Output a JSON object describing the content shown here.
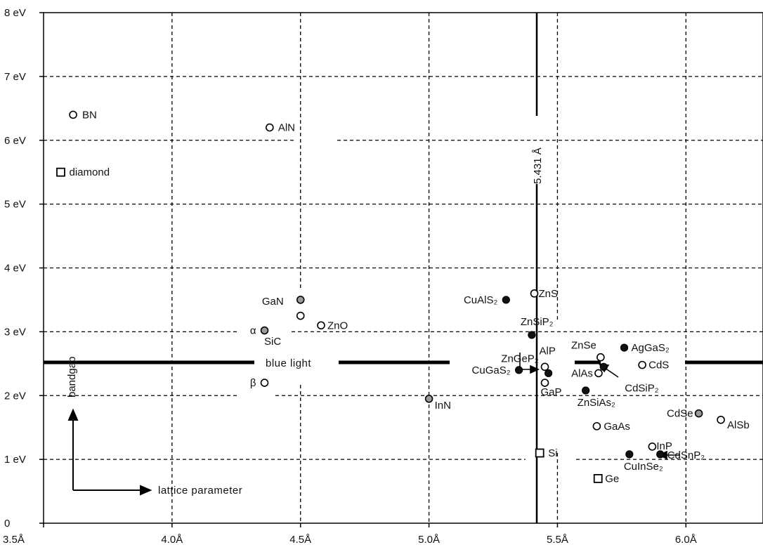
{
  "chart_data": {
    "type": "scatter",
    "xlim": [
      3.5,
      6.3
    ],
    "ylim": [
      0,
      8
    ],
    "grid": true,
    "xticks": [
      {
        "value": 3.5,
        "label": "3.5Å"
      },
      {
        "value": 4.0,
        "label": "4.0Å"
      },
      {
        "value": 4.5,
        "label": "4.5Å"
      },
      {
        "value": 5.0,
        "label": "5.0Å"
      },
      {
        "value": 5.5,
        "label": "5.5Å"
      },
      {
        "value": 6.0,
        "label": "6.0Å"
      }
    ],
    "yticks": [
      {
        "value": 0,
        "label": "0"
      },
      {
        "value": 1,
        "label": "1 eV"
      },
      {
        "value": 2,
        "label": "2 eV"
      },
      {
        "value": 3,
        "label": "3 eV"
      },
      {
        "value": 4,
        "label": "4 eV"
      },
      {
        "value": 5,
        "label": "5 eV"
      },
      {
        "value": 6,
        "label": "6 eV"
      },
      {
        "value": 7,
        "label": "7 eV"
      },
      {
        "value": 8,
        "label": "8 eV"
      }
    ],
    "points": [
      {
        "label": "BN",
        "x": 3.615,
        "y": 6.4,
        "marker": "open"
      },
      {
        "label": "AlN",
        "x": 4.38,
        "y": 6.2,
        "marker": "open"
      },
      {
        "label": "diamond",
        "x": 3.567,
        "y": 5.5,
        "marker": "square"
      },
      {
        "label": "GaN",
        "x": 4.5,
        "y": 3.5,
        "marker": "gray"
      },
      {
        "label": "",
        "x": 4.5,
        "y": 3.25,
        "marker": "open"
      },
      {
        "label": "ZnO",
        "x": 4.58,
        "y": 3.1,
        "marker": "open"
      },
      {
        "label": "α",
        "x": 4.36,
        "y": 3.02,
        "marker": "gray"
      },
      {
        "label": "β",
        "x": 4.36,
        "y": 2.2,
        "marker": "open"
      },
      {
        "label": "InN",
        "x": 5.0,
        "y": 1.95,
        "marker": "gray"
      },
      {
        "label": "CuAlS₂",
        "x": 5.3,
        "y": 3.5,
        "marker": "filled"
      },
      {
        "label": "ZnS",
        "x": 5.41,
        "y": 3.6,
        "marker": "open"
      },
      {
        "label": "ZnSiP₂",
        "x": 5.4,
        "y": 2.95,
        "marker": "filled"
      },
      {
        "label": "ZnGeP₂",
        "x": 5.465,
        "y": 2.35,
        "marker": "filled"
      },
      {
        "label": "AlP",
        "x": 5.451,
        "y": 2.45,
        "marker": "open"
      },
      {
        "label": "CuGaS₂",
        "x": 5.35,
        "y": 2.4,
        "marker": "filled"
      },
      {
        "label": "GaP",
        "x": 5.451,
        "y": 2.2,
        "marker": "open"
      },
      {
        "label": "ZnSe",
        "x": 5.668,
        "y": 2.6,
        "marker": "open"
      },
      {
        "label": "AgGaS₂",
        "x": 5.76,
        "y": 2.75,
        "marker": "filled"
      },
      {
        "label": "AlAs",
        "x": 5.66,
        "y": 2.35,
        "marker": "open"
      },
      {
        "label": "CdSiP₂",
        "x": 5.68,
        "y": 2.45,
        "marker": "filled"
      },
      {
        "label": "CdS",
        "x": 5.83,
        "y": 2.48,
        "marker": "open"
      },
      {
        "label": "ZnSiAs₂",
        "x": 5.61,
        "y": 2.08,
        "marker": "filled"
      },
      {
        "label": "GaAs",
        "x": 5.653,
        "y": 1.52,
        "marker": "open"
      },
      {
        "label": "CdSe",
        "x": 6.05,
        "y": 1.72,
        "marker": "gray"
      },
      {
        "label": "AlSb",
        "x": 6.136,
        "y": 1.62,
        "marker": "open"
      },
      {
        "label": "InP",
        "x": 5.869,
        "y": 1.2,
        "marker": "open"
      },
      {
        "label": "CdSnP₂",
        "x": 5.9,
        "y": 1.08,
        "marker": "filled"
      },
      {
        "label": "CuInSe₂",
        "x": 5.78,
        "y": 1.08,
        "marker": "filled"
      },
      {
        "label": "Si",
        "x": 5.431,
        "y": 1.1,
        "marker": "square"
      },
      {
        "label": "Ge",
        "x": 5.658,
        "y": 0.7,
        "marker": "square"
      }
    ],
    "annotations": {
      "sic": "SiC",
      "blue_light": "blue   light",
      "si_line": "5.431 Å",
      "bandgap": "bandgap",
      "lattice": "lattice  parameter"
    }
  }
}
